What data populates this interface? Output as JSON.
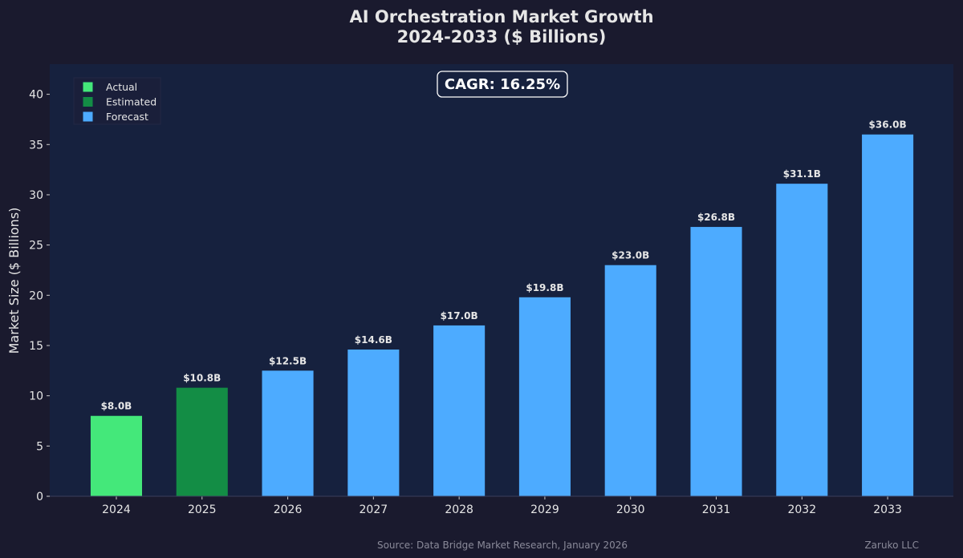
{
  "chart_data": {
    "type": "bar",
    "title": "AI Orchestration Market Growth",
    "subtitle": "2024-2033 ($ Billions)",
    "ylabel": "Market Size ($ Billions)",
    "xlabel": "",
    "categories": [
      "2024",
      "2025",
      "2026",
      "2027",
      "2028",
      "2029",
      "2030",
      "2031",
      "2032",
      "2033"
    ],
    "values": [
      8.0,
      10.8,
      12.5,
      14.6,
      17.0,
      19.8,
      23.0,
      26.8,
      31.1,
      36.0
    ],
    "data_labels": [
      "$8.0B",
      "$10.8B",
      "$12.5B",
      "$14.6B",
      "$17.0B",
      "$19.8B",
      "$23.0B",
      "$26.8B",
      "$31.1B",
      "$36.0B"
    ],
    "status": [
      "Actual",
      "Estimated",
      "Forecast",
      "Forecast",
      "Forecast",
      "Forecast",
      "Forecast",
      "Forecast",
      "Forecast",
      "Forecast"
    ],
    "ylim": [
      0,
      43
    ],
    "yticks": [
      0,
      5,
      10,
      15,
      20,
      25,
      30,
      35,
      40
    ],
    "grid": false,
    "legend": {
      "placement": "top-left",
      "entries": [
        {
          "label": "Actual",
          "color": "#44e87a"
        },
        {
          "label": "Estimated",
          "color": "#138d45"
        },
        {
          "label": "Forecast",
          "color": "#4dabff"
        }
      ]
    },
    "annotation": "CAGR: 16.25%",
    "colors": {
      "background": "#1a1a2e",
      "plot_background": "#16213e",
      "text": "#e6e6e6"
    }
  },
  "footer": {
    "source": "Source: Data Bridge Market Research, January 2026",
    "credit": "Zaruko LLC"
  }
}
